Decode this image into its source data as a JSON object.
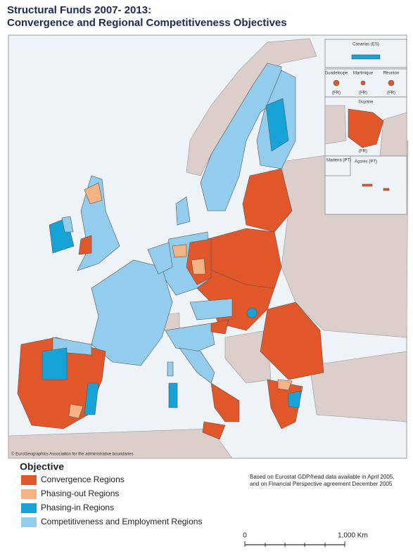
{
  "header": {
    "title": "Structural Funds 2007- 2013:",
    "subtitle": "Convergence and Regional Competitiveness Objectives"
  },
  "insets": {
    "canarias": "Canarias (ES)",
    "guadeloupe": {
      "name": "Guadeloupe",
      "country": "(FR)"
    },
    "martinique": {
      "name": "Martinique",
      "country": "(FR)"
    },
    "reunion": {
      "name": "Réunion",
      "country": "(FR)"
    },
    "guyane": {
      "name": "Guyane",
      "country": "(FR)"
    },
    "madeira": "Madeira (PT)",
    "acores": "Açores (PT)"
  },
  "copyright": "© EuroGeographics Association for the administrative boundaries",
  "legend": {
    "title": "Objective",
    "items": [
      {
        "label": "Convergence Regions",
        "color": "#e2572a"
      },
      {
        "label": "Phasing-out Regions",
        "color": "#f5b283"
      },
      {
        "label": "Phasing-in Regions",
        "color": "#16a4d8"
      },
      {
        "label": "Competitiveness and Employment Regions",
        "color": "#92cdee"
      }
    ]
  },
  "notes": [
    "Based on Eurostat GDP/head data available in April 2005,",
    "and on Financial Perspective agreement December 2005"
  ],
  "scale": {
    "start": "0",
    "end": "1,000 Km"
  }
}
